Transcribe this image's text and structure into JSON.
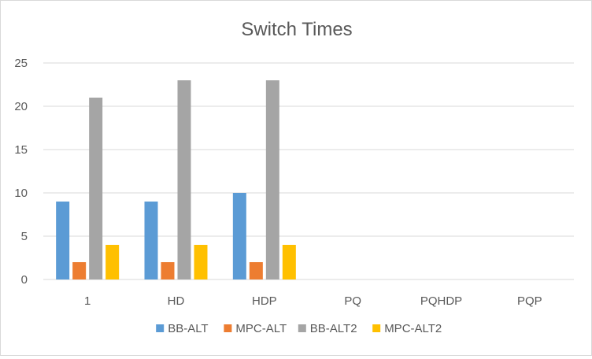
{
  "chart_data": {
    "type": "bar",
    "title": "Switch Times",
    "xlabel": "",
    "ylabel": "",
    "categories": [
      "1",
      "HD",
      "HDP",
      "PQ",
      "PQHDP",
      "PQP"
    ],
    "series": [
      {
        "name": "BB-ALT",
        "color": "#5b9bd5",
        "values": [
          9,
          9,
          10,
          null,
          null,
          null
        ]
      },
      {
        "name": "MPC-ALT",
        "color": "#ed7d31",
        "values": [
          2,
          2,
          2,
          null,
          null,
          null
        ]
      },
      {
        "name": "BB-ALT2",
        "color": "#a5a5a5",
        "values": [
          21,
          23,
          23,
          null,
          null,
          null
        ]
      },
      {
        "name": "MPC-ALT2",
        "color": "#ffc000",
        "values": [
          4,
          4,
          4,
          null,
          null,
          null
        ]
      }
    ],
    "ylim": [
      0,
      25
    ],
    "yticks": [
      0,
      5,
      10,
      15,
      20,
      25
    ],
    "grid": true,
    "legend": "bottom"
  }
}
